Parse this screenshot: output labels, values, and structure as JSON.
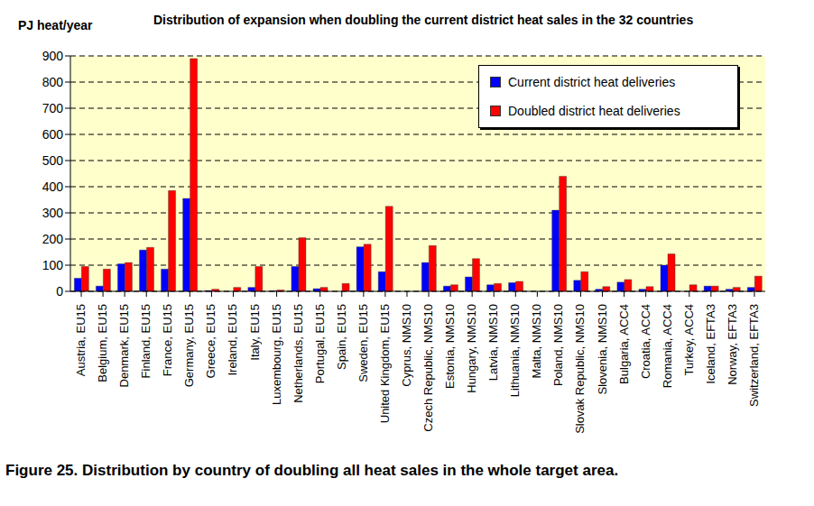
{
  "chart_data": {
    "type": "bar",
    "title": "Distribution of expansion when doubling the current district heat sales in the 32 countries",
    "y_label": "PJ heat/year",
    "annotations": [
      "Figure 25. Distribution by country of doubling all heat sales in the whole target area."
    ],
    "categories": [
      "Austria, EU15",
      "Belgium, EU15",
      "Denmark, EU15",
      "Finland, EU15",
      "France, EU15",
      "Germany, EU15",
      "Greece, EU15",
      "Ireland, EU15",
      "Italy, EU15",
      "Luxembourg, EU15",
      "Netherlands, EU15",
      "Portugal, EU15",
      "Spain, EU15",
      "Sweden, EU15",
      "United Kingdom, EU15",
      "Cyprus, NMS10",
      "Czech Republic, NMS10",
      "Estonia, NMS10",
      "Hungary, NMS10",
      "Latvia, NMS10",
      "Lithuania, NMS10",
      "Malta, NMS10",
      "Poland, NMS10",
      "Slovak Republic, NMS10",
      "Slovenia, NMS10",
      "Bulgaria, ACC4",
      "Croatia, ACC4",
      "Romania, ACC4",
      "Turkey, ACC4",
      "Iceland, EFTA3",
      "Norway, EFTA3",
      "Switzerland, EFTA3"
    ],
    "series": [
      {
        "name": "Current district heat deliveries",
        "color": "#0000ff",
        "values": [
          50,
          20,
          105,
          158,
          85,
          355,
          3,
          0,
          15,
          2,
          95,
          10,
          0,
          170,
          75,
          0,
          110,
          20,
          55,
          25,
          33,
          0,
          310,
          42,
          8,
          35,
          8,
          100,
          0,
          20,
          8,
          15
        ]
      },
      {
        "name": "Doubled district heat deliveries",
        "color": "#ff0000",
        "values": [
          95,
          85,
          110,
          168,
          385,
          890,
          8,
          15,
          95,
          5,
          205,
          15,
          30,
          180,
          325,
          0,
          175,
          25,
          125,
          30,
          38,
          0,
          440,
          75,
          18,
          45,
          18,
          143,
          25,
          20,
          15,
          58
        ]
      }
    ],
    "ylim": [
      0,
      900
    ],
    "yticks": [
      0,
      100,
      200,
      300,
      400,
      500,
      600,
      700,
      800,
      900
    ],
    "grid": true,
    "legend": "top-right"
  }
}
